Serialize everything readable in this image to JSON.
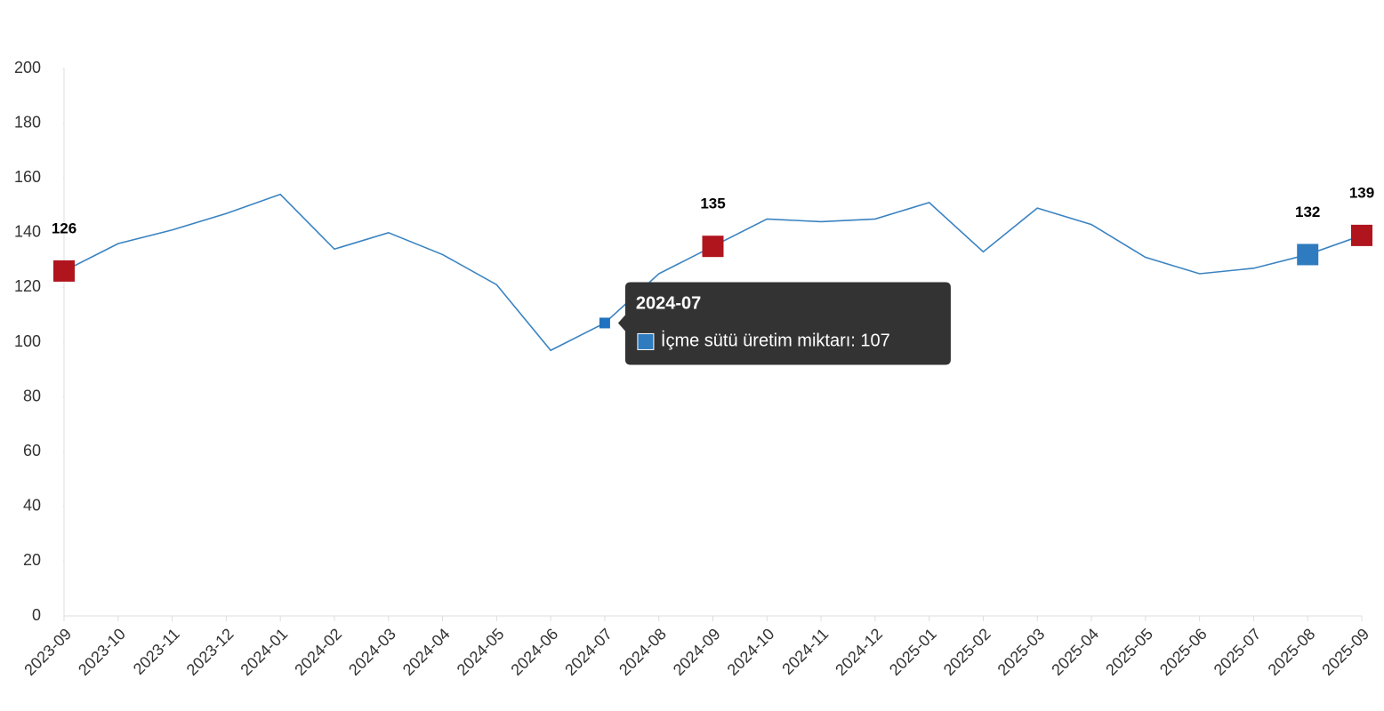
{
  "chart_data": {
    "type": "line",
    "categories": [
      "2023-09",
      "2023-10",
      "2023-11",
      "2023-12",
      "2024-01",
      "2024-02",
      "2024-03",
      "2024-04",
      "2024-05",
      "2024-06",
      "2024-07",
      "2024-08",
      "2024-09",
      "2024-10",
      "2024-11",
      "2024-12",
      "2025-01",
      "2025-02",
      "2025-03",
      "2025-04",
      "2025-05",
      "2025-06",
      "2025-07",
      "2025-08",
      "2025-09"
    ],
    "values": [
      126,
      136,
      141,
      147,
      154,
      134,
      140,
      132,
      121,
      97,
      107,
      125,
      135,
      145,
      144,
      145,
      151,
      133,
      149,
      143,
      131,
      125,
      127,
      132,
      139
    ],
    "color": "#3a83c1",
    "marker_colors": [
      "#b0151d",
      null,
      null,
      null,
      null,
      null,
      null,
      null,
      null,
      null,
      "#1f73c0",
      null,
      "#b0151d",
      null,
      null,
      null,
      null,
      null,
      null,
      null,
      null,
      null,
      null,
      "#2e7bbf",
      "#b0151d"
    ],
    "ylim": [
      0,
      200
    ],
    "yticks": [
      0,
      20,
      40,
      60,
      80,
      100,
      120,
      140,
      160,
      180,
      200
    ],
    "tooltip": {
      "title": "2024-07",
      "text": "İçme sütü üretim miktarı: 107",
      "color": "#2e7bbf"
    }
  }
}
